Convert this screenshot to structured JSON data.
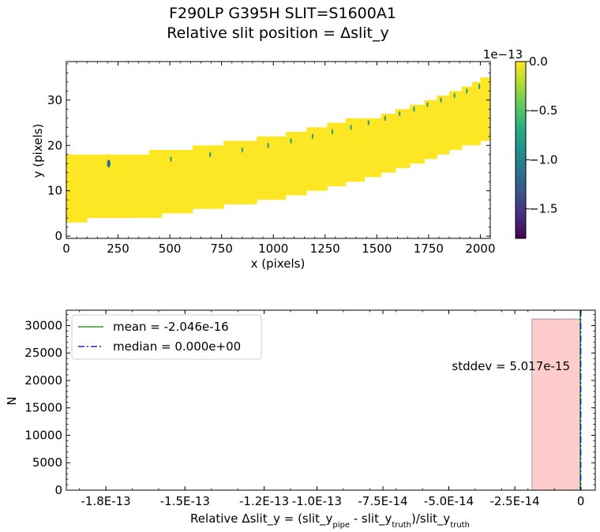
{
  "figure": {
    "title_line1": "F290LP   G395H   SLIT=S1600A1",
    "title_line2": "Relative slit position = Δslit_y"
  },
  "chart_data": [
    {
      "type": "heatmap",
      "xlabel": "x (pixels)",
      "ylabel": "y (pixels)",
      "xlim": [
        0,
        2048
      ],
      "ylim": [
        -0.5,
        38.5
      ],
      "xticks": [
        "0",
        "250",
        "500",
        "750",
        "1000",
        "1250",
        "1500",
        "1750",
        "2000"
      ],
      "yticks": [
        "0",
        "10",
        "20",
        "30"
      ],
      "colorbar": {
        "offset_label": "1e−13",
        "range": [
          -1.8e-13,
          0.0
        ],
        "ticks": [
          "0.0",
          "−0.5",
          "−1.0",
          "−1.5"
        ],
        "colormap": "viridis"
      },
      "fill_color": "#fde725",
      "trace_steps": [
        {
          "x0": 0,
          "x1": 100,
          "ylo": 3,
          "yhi": 18
        },
        {
          "x0": 100,
          "x1": 400,
          "ylo": 4,
          "yhi": 18
        },
        {
          "x0": 400,
          "x1": 460,
          "ylo": 4,
          "yhi": 19
        },
        {
          "x0": 460,
          "x1": 610,
          "ylo": 5,
          "yhi": 19
        },
        {
          "x0": 610,
          "x1": 760,
          "ylo": 6,
          "yhi": 20
        },
        {
          "x0": 760,
          "x1": 920,
          "ylo": 7,
          "yhi": 21
        },
        {
          "x0": 920,
          "x1": 1060,
          "ylo": 8,
          "yhi": 22
        },
        {
          "x0": 1060,
          "x1": 1160,
          "ylo": 9,
          "yhi": 23
        },
        {
          "x0": 1160,
          "x1": 1260,
          "ylo": 10,
          "yhi": 24
        },
        {
          "x0": 1260,
          "x1": 1350,
          "ylo": 11,
          "yhi": 25
        },
        {
          "x0": 1350,
          "x1": 1440,
          "ylo": 12,
          "yhi": 26
        },
        {
          "x0": 1440,
          "x1": 1520,
          "ylo": 13,
          "yhi": 26
        },
        {
          "x0": 1520,
          "x1": 1590,
          "ylo": 14,
          "yhi": 27
        },
        {
          "x0": 1590,
          "x1": 1660,
          "ylo": 15,
          "yhi": 28
        },
        {
          "x0": 1660,
          "x1": 1730,
          "ylo": 16,
          "yhi": 29
        },
        {
          "x0": 1730,
          "x1": 1790,
          "ylo": 17,
          "yhi": 30
        },
        {
          "x0": 1790,
          "x1": 1850,
          "ylo": 18,
          "yhi": 31
        },
        {
          "x0": 1850,
          "x1": 1910,
          "ylo": 19,
          "yhi": 32
        },
        {
          "x0": 1910,
          "x1": 1960,
          "ylo": 20,
          "yhi": 33
        },
        {
          "x0": 1960,
          "x1": 2000,
          "ylo": 20,
          "yhi": 34
        },
        {
          "x0": 2000,
          "x1": 2048,
          "ylo": 21,
          "yhi": 35
        }
      ],
      "speckles": [
        {
          "x": 205,
          "y": 16
        },
        {
          "x": 505,
          "y": 17
        },
        {
          "x": 695,
          "y": 18
        },
        {
          "x": 850,
          "y": 19
        },
        {
          "x": 975,
          "y": 20
        },
        {
          "x": 1085,
          "y": 21
        },
        {
          "x": 1190,
          "y": 22
        },
        {
          "x": 1285,
          "y": 23
        },
        {
          "x": 1375,
          "y": 24
        },
        {
          "x": 1460,
          "y": 25
        },
        {
          "x": 1540,
          "y": 26
        },
        {
          "x": 1610,
          "y": 27
        },
        {
          "x": 1680,
          "y": 28
        },
        {
          "x": 1745,
          "y": 29
        },
        {
          "x": 1810,
          "y": 30
        },
        {
          "x": 1875,
          "y": 31
        },
        {
          "x": 1935,
          "y": 32
        },
        {
          "x": 1995,
          "y": 33
        }
      ]
    },
    {
      "type": "bar",
      "subtype": "histogram",
      "xlabel_main": "Relative Δslit_y = (slit_y",
      "xlabel_sub1": "pipe",
      "xlabel_mid": " - slit_y",
      "xlabel_sub2": "truth",
      "xlabel_end": ")/slit_y",
      "xlabel_sub3": "truth",
      "ylabel": "N",
      "xlim": [
        -1.95e-13,
        5.5e-15
      ],
      "ylim": [
        0,
        32800
      ],
      "xtick_values": [
        -1.8e-13,
        -1.5e-13,
        -1.2e-13,
        -1e-13,
        -7.5e-14,
        -5e-14,
        -2.5e-14,
        0
      ],
      "xticks": [
        "-1.8E-13",
        "-1.5E-13",
        "-1.2E-13",
        "-1.0E-13",
        "-7.5E-14",
        "-5.0E-14",
        "-2.5E-14",
        "0"
      ],
      "ytick_values": [
        0,
        5000,
        10000,
        15000,
        20000,
        25000,
        30000
      ],
      "yticks": [
        "0",
        "5000",
        "10000",
        "15000",
        "20000",
        "25000",
        "30000"
      ],
      "bins": [
        {
          "x0": -1.85e-14,
          "x1": 0.0,
          "value": 31200
        }
      ],
      "bar_color": "#ffcccc",
      "mean": {
        "label": "mean = -2.046e-16",
        "value": -2.046e-16,
        "color": "#2ca02c"
      },
      "median": {
        "label": "median = 0.000e+00",
        "value": 0.0,
        "color": "#2222cc"
      },
      "stddev_label": "stddev = 5.017e-15",
      "legend_position": "upper-left"
    }
  ]
}
